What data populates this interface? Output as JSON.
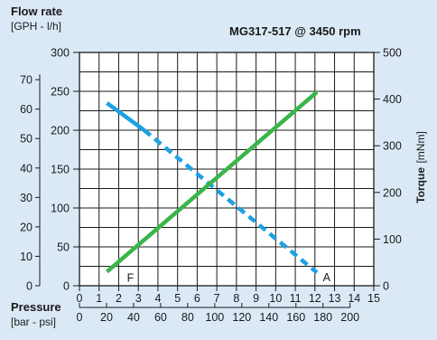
{
  "chart_data": {
    "type": "line",
    "title": "MG317-517 @ 3450 rpm",
    "flow_axis": {
      "title": "Flow rate",
      "unit": "[GPH - l/h]",
      "gph_ticks": [
        "0",
        "10",
        "20",
        "30",
        "40",
        "50",
        "60",
        "70"
      ],
      "lh_ticks": [
        "0",
        "50",
        "100",
        "150",
        "200",
        "250",
        "300"
      ],
      "lh_range": [
        0,
        300
      ]
    },
    "torque_axis": {
      "title": "Torque",
      "unit": "[mNm]",
      "ticks": [
        "0",
        "100",
        "200",
        "300",
        "400",
        "500"
      ],
      "range": [
        0,
        500
      ]
    },
    "pressure_axis": {
      "title": "Pressure",
      "unit": "[bar - psi]",
      "bar_ticks": [
        "0",
        "1",
        "2",
        "3",
        "4",
        "5",
        "6",
        "7",
        "8",
        "9",
        "10",
        "11",
        "12",
        "13",
        "14",
        "15"
      ],
      "psi_ticks": [
        "0",
        "20",
        "40",
        "60",
        "80",
        "100",
        "120",
        "140",
        "160",
        "180",
        "200"
      ],
      "bar_range": [
        0,
        15
      ]
    },
    "grid": true,
    "series": [
      {
        "axis": "flow",
        "label": "F",
        "color": "#1da1e4",
        "points": [
          {
            "x": 1.4,
            "y": 235,
            "style": "solid"
          },
          {
            "x": 3.3,
            "y": 200,
            "style": "solid"
          },
          {
            "x": 12.1,
            "y": 17,
            "style": "dashed"
          }
        ]
      },
      {
        "axis": "torque",
        "label": "A",
        "color": "#3ab54a",
        "points": [
          {
            "x": 1.4,
            "y": 30,
            "style": "solid"
          },
          {
            "x": 12.1,
            "y": 415,
            "style": "solid"
          }
        ]
      }
    ]
  }
}
